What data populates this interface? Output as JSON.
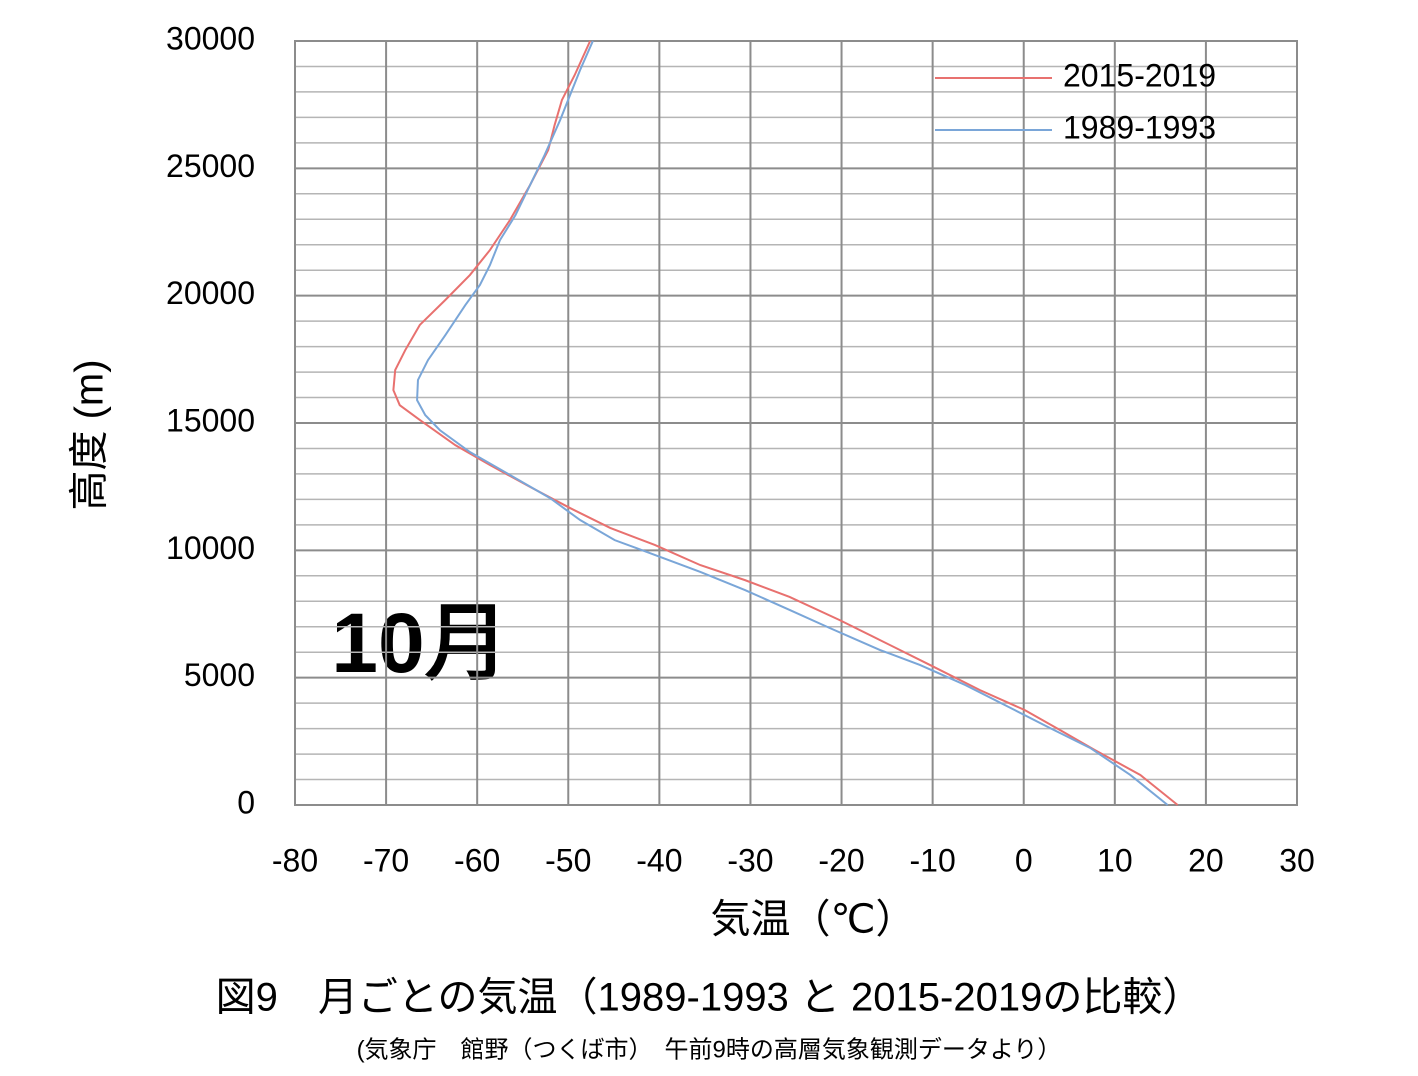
{
  "chart_data": {
    "type": "line",
    "title": "図9　月ごとの気温（1989-1993 と 2015-2019の比較）",
    "subtitle": "(気象庁　館野（つくば市）　午前9時の高層気象観測データより）",
    "annotation": "10月",
    "x_label": "気温（℃）",
    "y_label": "高度 (m)",
    "xlim": [
      -80,
      30
    ],
    "xticks": [
      -80,
      -70,
      -60,
      -50,
      -40,
      -30,
      -20,
      -10,
      0,
      10,
      20,
      30
    ],
    "ylim": [
      0,
      30000
    ],
    "yticks": [
      0,
      5000,
      10000,
      15000,
      20000,
      25000,
      30000
    ],
    "yminorticks": [
      1000,
      2000,
      3000,
      4000,
      6000,
      7000,
      8000,
      9000,
      11000,
      12000,
      13000,
      14000,
      16000,
      17000,
      18000,
      19000,
      21000,
      22000,
      23000,
      24000,
      26000,
      27000,
      28000,
      29000
    ],
    "grid": true,
    "legend": "upper right",
    "series": [
      {
        "name": "2015-2019",
        "color": "#e8716f",
        "x": [
          16.9,
          12.8,
          7.8,
          4.0,
          0.1,
          -4.8,
          -10.3,
          -15.8,
          -20.2,
          -25.7,
          -30.6,
          -35.5,
          -40.5,
          -45.4,
          -49.8,
          -54.2,
          -58.6,
          -62.4,
          -66.3,
          -68.5,
          -69.2,
          -69.0,
          -67.9,
          -66.3,
          -63.5,
          -60.8,
          -58.6,
          -56.4,
          -54.2,
          -52.2,
          -51.5,
          -50.7,
          -49.3,
          -47.6
        ],
        "values": [
          0,
          1180,
          2160,
          2940,
          3730,
          4510,
          5500,
          6480,
          7260,
          8170,
          8830,
          9420,
          10210,
          10880,
          11660,
          12490,
          13350,
          14130,
          15120,
          15700,
          16290,
          17080,
          17860,
          18850,
          19830,
          20810,
          21790,
          22970,
          24340,
          25720,
          26700,
          27680,
          28660,
          30000
        ]
      },
      {
        "name": "1989-1993",
        "color": "#7aa6d8",
        "x": [
          15.8,
          11.7,
          7.3,
          2.9,
          -1.0,
          -6.4,
          -11.4,
          -15.8,
          -21.3,
          -25.7,
          -30.6,
          -35.5,
          -40.5,
          -44.9,
          -48.7,
          -52.0,
          -56.4,
          -60.8,
          -64.1,
          -65.7,
          -66.6,
          -66.5,
          -65.4,
          -63.5,
          -61.3,
          -59.7,
          -58.6,
          -57.5,
          -55.8,
          -54.2,
          -52.6,
          -50.9,
          -49.8,
          -48.7,
          -47.3
        ],
        "values": [
          0,
          1180,
          2240,
          3020,
          3730,
          4710,
          5500,
          6090,
          6950,
          7660,
          8440,
          9150,
          9820,
          10400,
          11190,
          12050,
          12960,
          13860,
          14720,
          15310,
          15900,
          16690,
          17470,
          18450,
          19630,
          20420,
          21200,
          22180,
          23160,
          24340,
          25520,
          26890,
          27880,
          28860,
          30000
        ]
      }
    ]
  }
}
